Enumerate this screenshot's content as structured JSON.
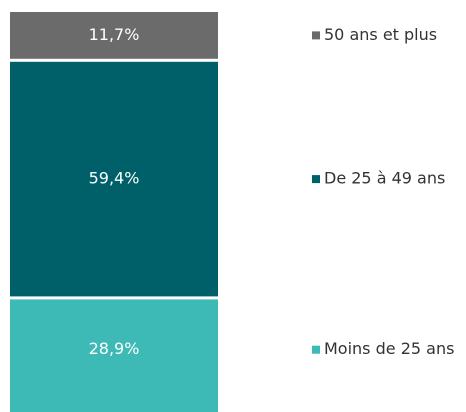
{
  "chart_data": {
    "type": "stacked-bar",
    "series": [
      {
        "name": "Moins de 25 ans",
        "color": "#3dbab5",
        "values": [
          28.9
        ],
        "value_labels": [
          "28,9%"
        ]
      },
      {
        "name": "De 25 à 49 ans",
        "color": "#00606a",
        "values": [
          59.4
        ],
        "value_labels": [
          "59,4%"
        ]
      },
      {
        "name": "50 ans et plus",
        "color": "#6b6b6b",
        "values": [
          11.7
        ],
        "value_labels": [
          "11,7%"
        ]
      }
    ]
  }
}
